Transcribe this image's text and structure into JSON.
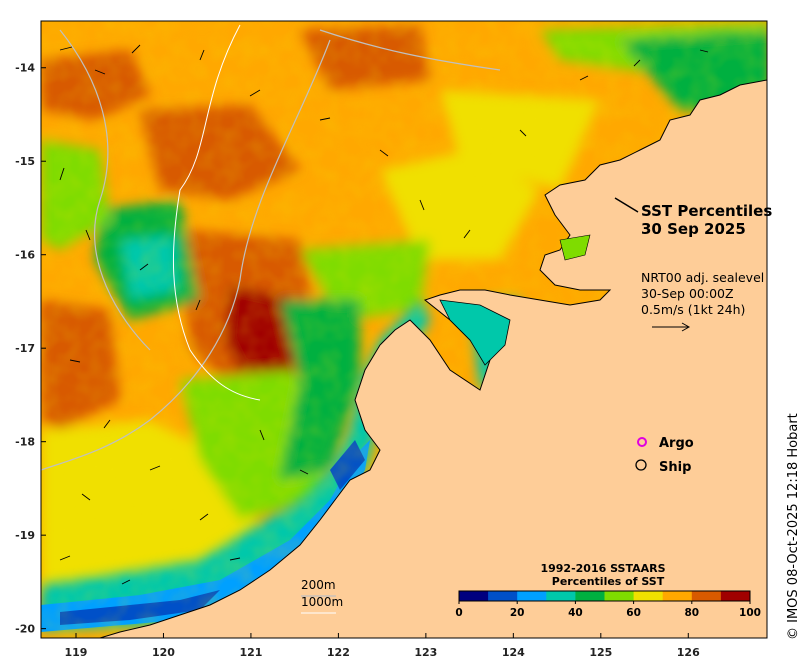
{
  "map": {
    "title_line1": "SST Percentiles",
    "title_line2": "30 Sep 2025",
    "current_info": {
      "line1": "NRT00 adj. sealevel",
      "line2": "30-Sep 00:00Z",
      "line3": "0.5m/s (1kt 24h)"
    },
    "legend": {
      "argo_label": "Argo",
      "ship_label": "Ship",
      "argo_color": "#e000e0",
      "ship_color": "#000000"
    },
    "depth_contours": {
      "label_200": "200m",
      "label_1000": "1000m",
      "color_200": "#c0c0c0",
      "color_1000": "#ffffff"
    },
    "colorbar": {
      "title_line1": "1992-2016 SSTAARS",
      "title_line2": "Percentiles of SST",
      "tick_labels": [
        "0",
        "20",
        "40",
        "60",
        "80",
        "100"
      ],
      "tick_values": [
        0,
        20,
        40,
        60,
        80,
        100
      ],
      "colors": [
        "#00007f",
        "#0050c8",
        "#00a0ff",
        "#00c8aa",
        "#00b040",
        "#7fdc00",
        "#f0e000",
        "#ffa800",
        "#d85a00",
        "#a00000"
      ]
    },
    "axes": {
      "x_ticks": [
        "119",
        "120",
        "121",
        "122",
        "123",
        "124",
        "125",
        "126"
      ],
      "x_values": [
        119,
        120,
        121,
        122,
        123,
        124,
        125,
        126
      ],
      "y_ticks": [
        "-14",
        "-15",
        "-16",
        "-17",
        "-18",
        "-19",
        "-20"
      ],
      "y_values": [
        -14,
        -15,
        -16,
        -17,
        -18,
        -19,
        -20
      ],
      "lon_range": [
        118.6,
        126.9
      ],
      "lat_range": [
        -13.5,
        -20.1
      ]
    },
    "land_color": "#fecd98",
    "credit": "© IMOS 08-Oct-2025 12:18 Hobart"
  }
}
